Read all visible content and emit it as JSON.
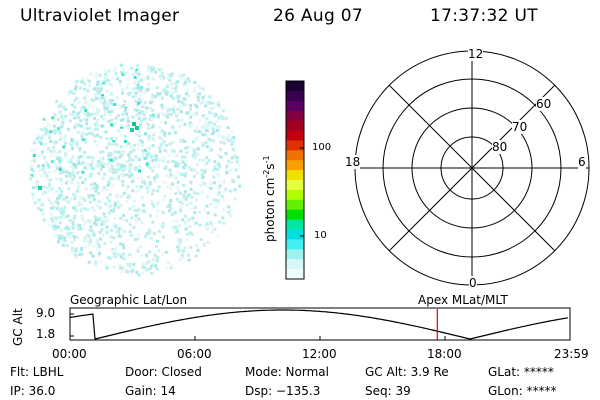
{
  "header": {
    "instrument": "Ultraviolet Imager",
    "date": "26 Aug 07",
    "time": "17:37:32 UT"
  },
  "colorbar": {
    "unit_label": "photon cm",
    "unit_sup1": "-2",
    "unit_mid": "s",
    "unit_sup2": "-1",
    "ticks": [
      "100",
      "10"
    ],
    "colors": [
      "#1a0030",
      "#3a0050",
      "#5a0060",
      "#800040",
      "#a00020",
      "#c00010",
      "#e03000",
      "#f07000",
      "#f8a000",
      "#f0e000",
      "#e8ff40",
      "#b0ff00",
      "#60f000",
      "#00e000",
      "#00e8a0",
      "#00e0e0",
      "#40f0f0",
      "#a0f0f0",
      "#d8f8f8",
      "#eefcfc"
    ]
  },
  "polar_plot": {
    "mlt_labels": {
      "top": "12",
      "right": "6",
      "bottom": "0",
      "left": "18"
    },
    "lat_labels": [
      "60",
      "70",
      "80"
    ]
  },
  "timeline": {
    "ylabel": "GC Alt",
    "yticks": [
      "9.0",
      "1.8"
    ],
    "left_caption": "Geographic Lat/Lon",
    "right_caption": "Apex MLat/MLT",
    "xticks": [
      "00:00",
      "06:00",
      "12:00",
      "18:00",
      "23:59"
    ],
    "marker_time_hours": 17.63
  },
  "status": {
    "flt": "Flt: LBHL",
    "ip": "IP: 36.0",
    "door": "Door: Closed",
    "gain": "Gain: 14",
    "mode": "Mode: Normal",
    "dsp": "Dsp: −135.3",
    "gc_alt": "GC Alt: 3.9 Re",
    "seq": "Seq: 39",
    "glat": "GLat: *****",
    "glon": "GLon: *****"
  }
}
